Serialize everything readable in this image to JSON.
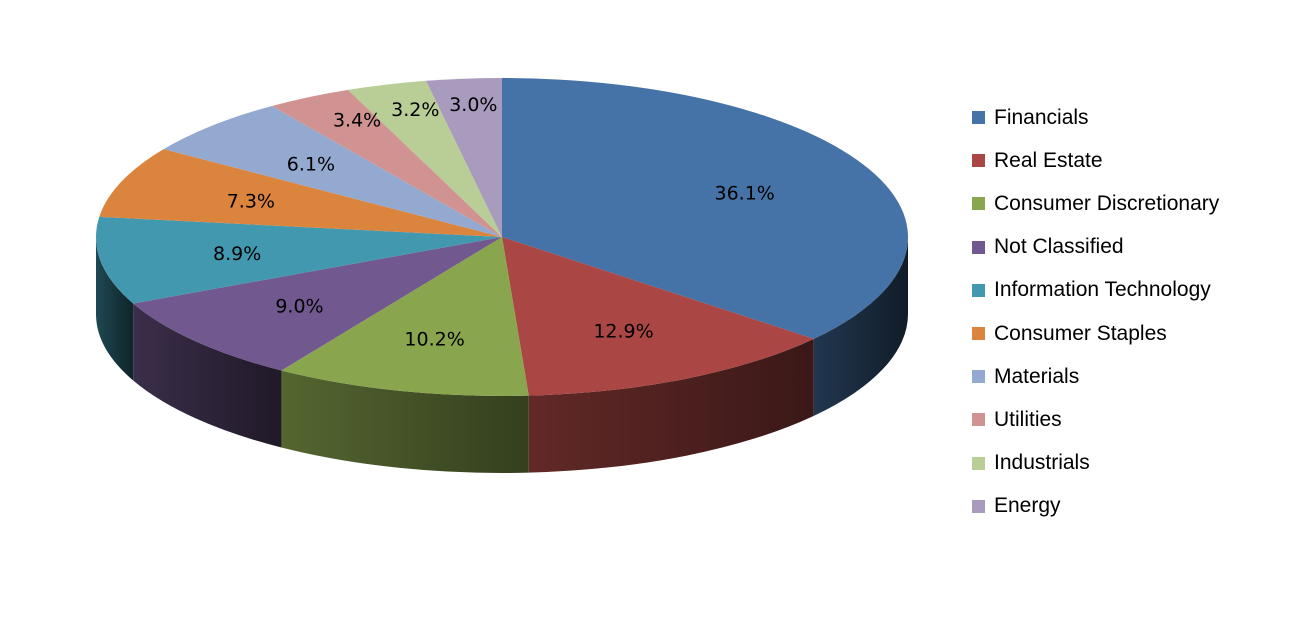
{
  "chart_data": {
    "type": "pie",
    "style": "3d",
    "title": "",
    "categories": [
      "Financials",
      "Real Estate",
      "Consumer Discretionary",
      "Not Classified",
      "Information Technology",
      "Consumer Staples",
      "Materials",
      "Utilities",
      "Industrials",
      "Energy"
    ],
    "values": [
      36.1,
      12.9,
      10.2,
      9.0,
      8.9,
      7.3,
      6.1,
      3.4,
      3.2,
      3.0
    ],
    "data_labels": [
      "36.1%",
      "12.9%",
      "10.2%",
      "9.0%",
      "8.9%",
      "7.3%",
      "6.1%",
      "3.4%",
      "3.2%",
      "3.0%"
    ],
    "colors": [
      "#4572A7",
      "#AA4643",
      "#89A54E",
      "#71588F",
      "#4198AF",
      "#DB843D",
      "#93A9CF",
      "#D19392",
      "#B9CD96",
      "#A99BBD"
    ],
    "legend_position": "right"
  }
}
